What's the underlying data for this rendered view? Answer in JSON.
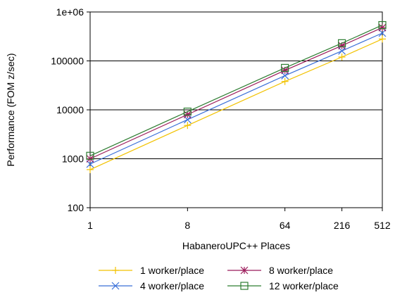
{
  "chart_data": {
    "type": "line",
    "title": "",
    "xlabel": "HabaneroUPC++ Places",
    "ylabel": "Performance (FOM z/sec)",
    "xscale": "log",
    "yscale": "log",
    "x": [
      1,
      8,
      64,
      216,
      512
    ],
    "x_tick_labels": [
      "1",
      "8",
      "64",
      "216",
      "512"
    ],
    "ylim": [
      100,
      1000000
    ],
    "y_ticks": [
      100,
      1000,
      10000,
      100000,
      1000000
    ],
    "y_tick_labels": [
      "100",
      "1000",
      "10000",
      "100000",
      "1e+06"
    ],
    "grid": "horizontal",
    "legend_position": "bottom",
    "series": [
      {
        "name": "1 worker/place",
        "color": "#f2c200",
        "marker": "plus",
        "values": [
          600,
          4800,
          38000,
          120000,
          280000
        ]
      },
      {
        "name": "4 worker/place",
        "color": "#3a6fd8",
        "marker": "x",
        "values": [
          780,
          6300,
          50000,
          160000,
          370000
        ]
      },
      {
        "name": "8 worker/place",
        "color": "#9b1b5a",
        "marker": "asterisk",
        "values": [
          1000,
          8000,
          64000,
          205000,
          480000
        ]
      },
      {
        "name": "12 worker/place",
        "color": "#2e7d32",
        "marker": "square",
        "values": [
          1150,
          9200,
          72000,
          230000,
          540000
        ]
      }
    ]
  }
}
